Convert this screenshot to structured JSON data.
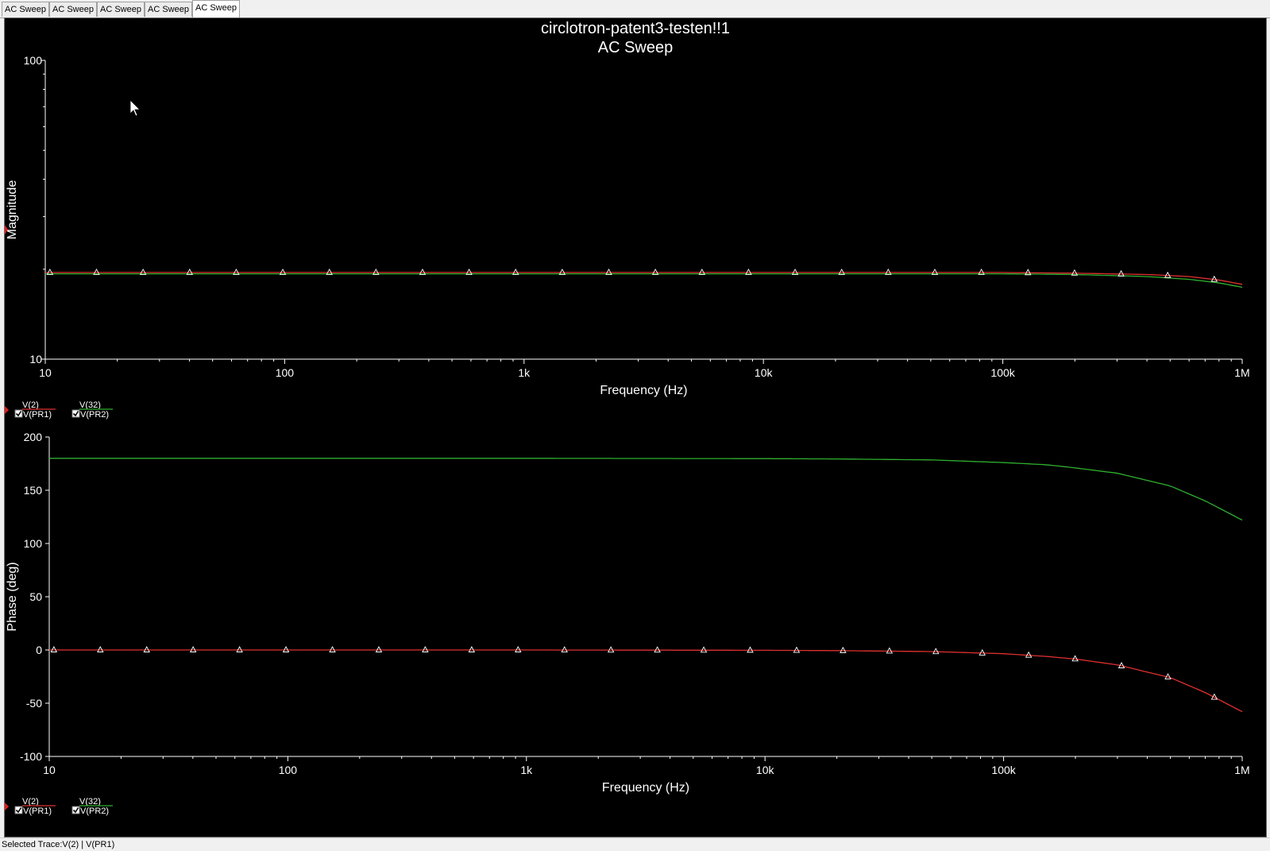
{
  "tabs": [
    {
      "label": "AC Sweep",
      "active": false
    },
    {
      "label": "AC Sweep",
      "active": false
    },
    {
      "label": "AC Sweep",
      "active": false
    },
    {
      "label": "AC Sweep",
      "active": false
    },
    {
      "label": "AC Sweep",
      "active": true
    }
  ],
  "plot": {
    "title": "circlotron-patent3-testen!!1",
    "subtitle": "AC Sweep"
  },
  "colors": {
    "background": "#000000",
    "axis": "#ffffff",
    "trace_v2": "#e03030",
    "trace_v32": "#2fb02f",
    "marker": "#ffffff"
  },
  "legend": [
    {
      "top": "V(2)",
      "bottom": "V(PR1)",
      "color": "#e03030",
      "checked": true,
      "selected": true
    },
    {
      "top": "V(32)",
      "bottom": "V(PR2)",
      "color": "#2fb02f",
      "checked": true,
      "selected": false
    }
  ],
  "status": {
    "text": "Selected Trace:V(2) | V(PR1)"
  },
  "chart_data": [
    {
      "type": "line",
      "xscale": "log",
      "yscale": "log",
      "xlabel": "Frequency (Hz)",
      "ylabel": "Magnitude",
      "xlim": [
        10,
        1000000
      ],
      "ylim": [
        10,
        100
      ],
      "xticks": [
        10,
        100,
        1000,
        10000,
        100000,
        1000000
      ],
      "xtick_labels": [
        "10",
        "100",
        "1k",
        "10k",
        "100k",
        "1M"
      ],
      "yticks": [
        10,
        100
      ],
      "ytick_labels": [
        "10",
        "100"
      ],
      "x": [
        10,
        100,
        1000,
        10000,
        100000,
        200000,
        400000,
        600000,
        800000,
        1000000
      ],
      "series": [
        {
          "name": "V(2)",
          "values": [
            19.5,
            19.5,
            19.5,
            19.5,
            19.5,
            19.4,
            19.2,
            18.9,
            18.4,
            17.8
          ]
        },
        {
          "name": "V(32)",
          "values": [
            19.3,
            19.3,
            19.3,
            19.3,
            19.3,
            19.2,
            18.9,
            18.5,
            18.0,
            17.4
          ]
        }
      ],
      "markers_on": "V(2)"
    },
    {
      "type": "line",
      "xscale": "log",
      "xlabel": "Frequency (Hz)",
      "ylabel": "Phase (deg)",
      "xlim": [
        10,
        1000000
      ],
      "ylim": [
        -100,
        200
      ],
      "xticks": [
        10,
        100,
        1000,
        10000,
        100000,
        1000000
      ],
      "xtick_labels": [
        "10",
        "100",
        "1k",
        "10k",
        "100k",
        "1M"
      ],
      "yticks": [
        -100,
        -50,
        0,
        50,
        100,
        150,
        200
      ],
      "ytick_labels": [
        "-100",
        "-50",
        "0",
        "50",
        "100",
        "150",
        "200"
      ],
      "x": [
        10,
        1000,
        10000,
        20000,
        50000,
        100000,
        150000,
        200000,
        300000,
        500000,
        700000,
        1000000
      ],
      "series": [
        {
          "name": "V(2)",
          "values": [
            0,
            0,
            -0.3,
            -0.6,
            -1.5,
            -3.5,
            -6,
            -8.5,
            -14,
            -26,
            -40,
            -58
          ]
        },
        {
          "name": "V(32)",
          "values": [
            180,
            180,
            179.7,
            179.4,
            178.5,
            176,
            174,
            171,
            166,
            154,
            140,
            122
          ]
        }
      ],
      "markers_on": "V(2)"
    }
  ]
}
